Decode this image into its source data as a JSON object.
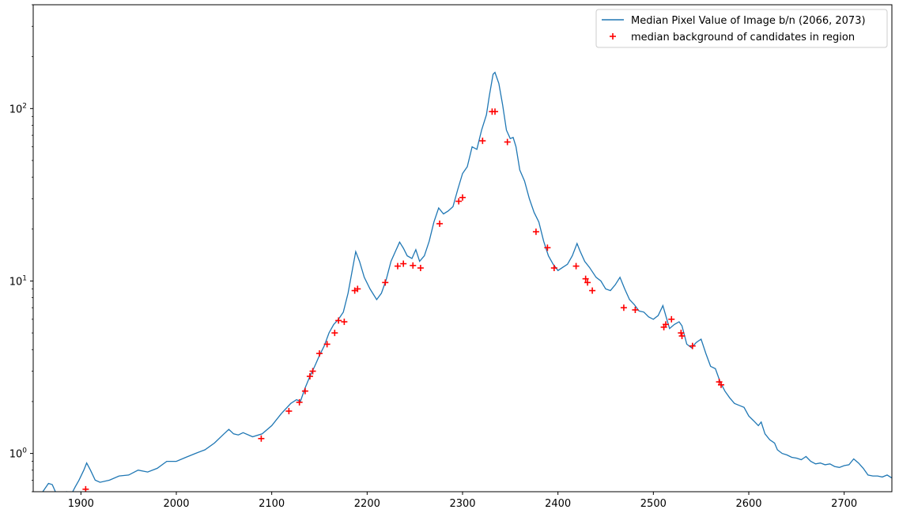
{
  "chart_data": {
    "type": "line",
    "title": "",
    "xlabel": "",
    "ylabel": "",
    "xlim": [
      1850,
      2750
    ],
    "ylim": [
      0.6,
      400
    ],
    "yscale": "log",
    "grid": false,
    "legend_position": "top-right",
    "x_ticks": [
      1900,
      2000,
      2100,
      2200,
      2300,
      2400,
      2500,
      2600,
      2700
    ],
    "y_ticks": [
      {
        "value": 1,
        "base": "10",
        "exp": "0"
      },
      {
        "value": 10,
        "base": "10",
        "exp": "1"
      },
      {
        "value": 100,
        "base": "10",
        "exp": "2"
      }
    ],
    "series": [
      {
        "name": "Median Pixel Value of Image b/n (2066, 2073)",
        "kind": "line",
        "color": "#1f77b4",
        "points": [
          [
            1850,
            0.57
          ],
          [
            1855,
            0.58
          ],
          [
            1860,
            0.6
          ],
          [
            1866,
            0.67
          ],
          [
            1870,
            0.66
          ],
          [
            1875,
            0.57
          ],
          [
            1880,
            0.55
          ],
          [
            1885,
            0.6
          ],
          [
            1890,
            0.58
          ],
          [
            1894,
            0.64
          ],
          [
            1898,
            0.7
          ],
          [
            1903,
            0.8
          ],
          [
            1906,
            0.88
          ],
          [
            1910,
            0.8
          ],
          [
            1915,
            0.7
          ],
          [
            1920,
            0.68
          ],
          [
            1930,
            0.7
          ],
          [
            1940,
            0.74
          ],
          [
            1950,
            0.75
          ],
          [
            1960,
            0.8
          ],
          [
            1970,
            0.78
          ],
          [
            1980,
            0.82
          ],
          [
            1990,
            0.9
          ],
          [
            2000,
            0.9
          ],
          [
            2010,
            0.95
          ],
          [
            2020,
            1.0
          ],
          [
            2030,
            1.05
          ],
          [
            2040,
            1.15
          ],
          [
            2050,
            1.3
          ],
          [
            2055,
            1.38
          ],
          [
            2060,
            1.3
          ],
          [
            2065,
            1.28
          ],
          [
            2070,
            1.32
          ],
          [
            2080,
            1.25
          ],
          [
            2090,
            1.3
          ],
          [
            2100,
            1.45
          ],
          [
            2110,
            1.7
          ],
          [
            2120,
            1.95
          ],
          [
            2126,
            2.05
          ],
          [
            2130,
            2.0
          ],
          [
            2135,
            2.4
          ],
          [
            2140,
            2.8
          ],
          [
            2145,
            3.2
          ],
          [
            2150,
            3.7
          ],
          [
            2155,
            4.2
          ],
          [
            2160,
            5.0
          ],
          [
            2165,
            5.6
          ],
          [
            2170,
            6.0
          ],
          [
            2175,
            6.6
          ],
          [
            2180,
            8.5
          ],
          [
            2185,
            12.0
          ],
          [
            2188,
            14.8
          ],
          [
            2192,
            13.0
          ],
          [
            2197,
            10.5
          ],
          [
            2203,
            9.0
          ],
          [
            2210,
            7.8
          ],
          [
            2215,
            8.5
          ],
          [
            2220,
            10.2
          ],
          [
            2225,
            13.0
          ],
          [
            2230,
            15.0
          ],
          [
            2234,
            16.8
          ],
          [
            2238,
            15.5
          ],
          [
            2242,
            14.0
          ],
          [
            2247,
            13.5
          ],
          [
            2251,
            15.2
          ],
          [
            2255,
            13.0
          ],
          [
            2260,
            14.0
          ],
          [
            2265,
            17.0
          ],
          [
            2270,
            22.0
          ],
          [
            2275,
            26.5
          ],
          [
            2280,
            24.5
          ],
          [
            2285,
            25.5
          ],
          [
            2290,
            27.0
          ],
          [
            2295,
            34.0
          ],
          [
            2300,
            42.0
          ],
          [
            2305,
            46.0
          ],
          [
            2310,
            60.0
          ],
          [
            2315,
            58.0
          ],
          [
            2320,
            75.0
          ],
          [
            2325,
            92.0
          ],
          [
            2328,
            118.0
          ],
          [
            2332,
            158.0
          ],
          [
            2334,
            162.0
          ],
          [
            2338,
            140.0
          ],
          [
            2342,
            105.0
          ],
          [
            2346,
            75.0
          ],
          [
            2350,
            67.0
          ],
          [
            2353,
            68.0
          ],
          [
            2356,
            60.0
          ],
          [
            2360,
            44.0
          ],
          [
            2365,
            38.0
          ],
          [
            2370,
            30.0
          ],
          [
            2375,
            25.0
          ],
          [
            2380,
            22.0
          ],
          [
            2385,
            17.0
          ],
          [
            2390,
            14.0
          ],
          [
            2395,
            12.5
          ],
          [
            2400,
            11.5
          ],
          [
            2405,
            12.0
          ],
          [
            2410,
            12.5
          ],
          [
            2415,
            14.0
          ],
          [
            2420,
            16.5
          ],
          [
            2423,
            15.0
          ],
          [
            2428,
            13.0
          ],
          [
            2433,
            12.0
          ],
          [
            2440,
            10.5
          ],
          [
            2445,
            10.0
          ],
          [
            2450,
            9.0
          ],
          [
            2455,
            8.8
          ],
          [
            2460,
            9.5
          ],
          [
            2465,
            10.5
          ],
          [
            2470,
            9.0
          ],
          [
            2475,
            7.8
          ],
          [
            2480,
            7.3
          ],
          [
            2485,
            6.7
          ],
          [
            2490,
            6.6
          ],
          [
            2495,
            6.2
          ],
          [
            2500,
            6.0
          ],
          [
            2505,
            6.3
          ],
          [
            2510,
            7.2
          ],
          [
            2513,
            6.3
          ],
          [
            2517,
            5.3
          ],
          [
            2522,
            5.6
          ],
          [
            2527,
            5.8
          ],
          [
            2530,
            5.5
          ],
          [
            2535,
            4.3
          ],
          [
            2540,
            4.1
          ],
          [
            2545,
            4.4
          ],
          [
            2550,
            4.6
          ],
          [
            2555,
            3.8
          ],
          [
            2560,
            3.2
          ],
          [
            2565,
            3.1
          ],
          [
            2570,
            2.6
          ],
          [
            2575,
            2.3
          ],
          [
            2580,
            2.1
          ],
          [
            2585,
            1.95
          ],
          [
            2590,
            1.9
          ],
          [
            2595,
            1.85
          ],
          [
            2600,
            1.65
          ],
          [
            2605,
            1.55
          ],
          [
            2610,
            1.45
          ],
          [
            2613,
            1.52
          ],
          [
            2617,
            1.3
          ],
          [
            2622,
            1.2
          ],
          [
            2627,
            1.15
          ],
          [
            2630,
            1.05
          ],
          [
            2635,
            1.0
          ],
          [
            2640,
            0.98
          ],
          [
            2645,
            0.95
          ],
          [
            2650,
            0.94
          ],
          [
            2655,
            0.92
          ],
          [
            2660,
            0.96
          ],
          [
            2665,
            0.9
          ],
          [
            2670,
            0.87
          ],
          [
            2675,
            0.88
          ],
          [
            2680,
            0.86
          ],
          [
            2685,
            0.87
          ],
          [
            2690,
            0.84
          ],
          [
            2695,
            0.83
          ],
          [
            2700,
            0.85
          ],
          [
            2705,
            0.86
          ],
          [
            2710,
            0.93
          ],
          [
            2715,
            0.88
          ],
          [
            2720,
            0.82
          ],
          [
            2725,
            0.75
          ],
          [
            2730,
            0.74
          ],
          [
            2735,
            0.74
          ],
          [
            2740,
            0.73
          ],
          [
            2745,
            0.75
          ],
          [
            2750,
            0.72
          ]
        ]
      },
      {
        "name": "median background of candidates in region",
        "kind": "scatter",
        "color": "#ff0000",
        "points": [
          [
            1905,
            0.62
          ],
          [
            2089,
            1.22
          ],
          [
            2118,
            1.76
          ],
          [
            2129,
            1.98
          ],
          [
            2135,
            2.3
          ],
          [
            2140,
            2.8
          ],
          [
            2143,
            3.0
          ],
          [
            2150,
            3.8
          ],
          [
            2158,
            4.3
          ],
          [
            2166,
            5.0
          ],
          [
            2170,
            5.9
          ],
          [
            2176,
            5.8
          ],
          [
            2187,
            8.8
          ],
          [
            2190,
            9.0
          ],
          [
            2219,
            9.8
          ],
          [
            2232,
            12.2
          ],
          [
            2238,
            12.6
          ],
          [
            2248,
            12.3
          ],
          [
            2256,
            11.9
          ],
          [
            2276,
            21.5
          ],
          [
            2296,
            29.0
          ],
          [
            2300,
            30.5
          ],
          [
            2321,
            65.0
          ],
          [
            2331,
            96.0
          ],
          [
            2334,
            96.0
          ],
          [
            2347,
            64.0
          ],
          [
            2377,
            19.3
          ],
          [
            2389,
            15.6
          ],
          [
            2396,
            11.9
          ],
          [
            2419,
            12.2
          ],
          [
            2429,
            10.3
          ],
          [
            2431,
            9.8
          ],
          [
            2436,
            8.8
          ],
          [
            2469,
            7.0
          ],
          [
            2481,
            6.8
          ],
          [
            2511,
            5.4
          ],
          [
            2513,
            5.6
          ],
          [
            2519,
            6.0
          ],
          [
            2529,
            5.0
          ],
          [
            2530,
            4.8
          ],
          [
            2541,
            4.2
          ],
          [
            2569,
            2.6
          ],
          [
            2571,
            2.5
          ]
        ]
      }
    ]
  }
}
